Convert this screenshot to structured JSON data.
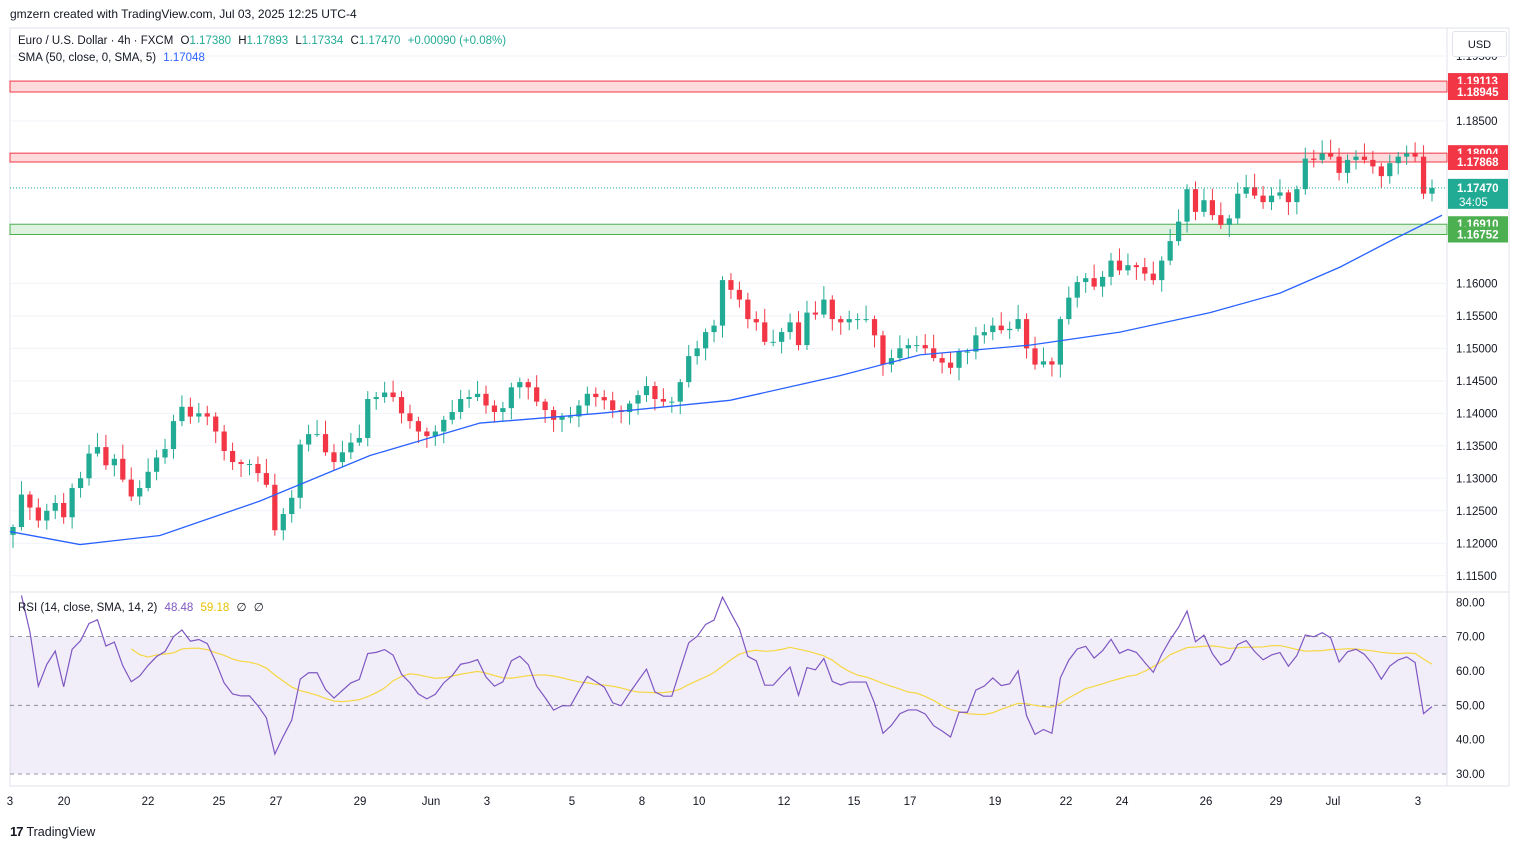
{
  "attribution": "gmzern created with TradingView.com, Jul 03, 2025 12:25 UTC-4",
  "legend": {
    "symbol": "Euro / U.S. Dollar · 4h · FXCM",
    "o_label": "O",
    "o_value": "1.17380",
    "h_label": "H",
    "h_value": "1.17893",
    "l_label": "L",
    "l_value": "1.17334",
    "c_label": "C",
    "c_value": "1.17470",
    "change": "+0.00090 (+0.08%)",
    "sma_label": "SMA (50, close, 0, SMA, 5)",
    "sma_value": "1.17048",
    "rsi_label": "RSI (14, close, SMA, 14, 2)",
    "rsi_value": "48.48",
    "rsi_sma_value": "59.18",
    "rsi_extra1": "∅",
    "rsi_extra2": "∅"
  },
  "currency_button": "USD",
  "footer_brand": "TradingView",
  "colors": {
    "up": "#22ab94",
    "down": "#f23645",
    "sma": "#2962ff",
    "rsi": "#7e57c2",
    "rsi_sma": "#f5d742",
    "resistance_zone": "#f23645",
    "support_zone": "#4caf50"
  },
  "chart_data": {
    "type": "candlestick",
    "main_panel": {
      "y_ticks": [
        "1.19500",
        "1.18500",
        "1.16000",
        "1.15500",
        "1.15000",
        "1.14500",
        "1.14000",
        "1.13500",
        "1.13000",
        "1.12500",
        "1.12000",
        "1.11500"
      ],
      "y_tick_values": [
        1.195,
        1.185,
        1.16,
        1.155,
        1.15,
        1.145,
        1.14,
        1.135,
        1.13,
        1.125,
        1.12,
        1.115
      ],
      "ylim": [
        1.1125,
        1.1993
      ],
      "zones": [
        {
          "type": "resistance",
          "top": 1.19113,
          "bottom": 1.18945,
          "top_label": "1.19113",
          "bottom_label": "1.18945"
        },
        {
          "type": "resistance",
          "top": 1.18004,
          "bottom": 1.17868,
          "top_label": "1.18004",
          "bottom_label": "1.17868"
        },
        {
          "type": "support",
          "top": 1.1691,
          "bottom": 1.16752,
          "top_label": "1.16910",
          "bottom_label": "1.16752"
        }
      ],
      "last_price": {
        "value": 1.1747,
        "label": "1.17470",
        "countdown": "34:05"
      },
      "sma_path": [
        [
          0,
          1.1218
        ],
        [
          70,
          1.1198
        ],
        [
          150,
          1.1212
        ],
        [
          250,
          1.1265
        ],
        [
          360,
          1.1335
        ],
        [
          470,
          1.1385
        ],
        [
          590,
          1.14
        ],
        [
          720,
          1.142
        ],
        [
          830,
          1.1458
        ],
        [
          910,
          1.149
        ],
        [
          1020,
          1.1505
        ],
        [
          1110,
          1.1525
        ],
        [
          1200,
          1.1555
        ],
        [
          1270,
          1.1585
        ],
        [
          1330,
          1.1625
        ],
        [
          1380,
          1.1665
        ],
        [
          1432,
          1.17048
        ]
      ]
    },
    "candles_close": [
      1.1225,
      1.1275,
      1.1255,
      1.1235,
      1.125,
      1.1262,
      1.124,
      1.1285,
      1.13,
      1.1338,
      1.1348,
      1.132,
      1.133,
      1.1298,
      1.1272,
      1.1285,
      1.131,
      1.1332,
      1.1345,
      1.1388,
      1.141,
      1.1395,
      1.14,
      1.1395,
      1.1372,
      1.1342,
      1.1325,
      1.1322,
      1.1322,
      1.1308,
      1.129,
      1.122,
      1.1245,
      1.127,
      1.1352,
      1.1368,
      1.1368,
      1.134,
      1.1325,
      1.134,
      1.1355,
      1.1362,
      1.1422,
      1.1425,
      1.1432,
      1.1425,
      1.14,
      1.1388,
      1.1372,
      1.1365,
      1.1372,
      1.139,
      1.1402,
      1.1422,
      1.1425,
      1.143,
      1.1412,
      1.1402,
      1.1408,
      1.144,
      1.1448,
      1.144,
      1.1418,
      1.1405,
      1.139,
      1.1395,
      1.1395,
      1.1412,
      1.143,
      1.1425,
      1.142,
      1.1405,
      1.1402,
      1.1415,
      1.1428,
      1.1442,
      1.1422,
      1.1418,
      1.1418,
      1.1448,
      1.1488,
      1.15,
      1.1525,
      1.1535,
      1.1605,
      1.159,
      1.1575,
      1.1545,
      1.154,
      1.151,
      1.151,
      1.1525,
      1.154,
      1.1505,
      1.1555,
      1.1552,
      1.1575,
      1.1545,
      1.154,
      1.1545,
      1.1545,
      1.1545,
      1.152,
      1.1475,
      1.1485,
      1.15,
      1.1505,
      1.1505,
      1.15,
      1.1485,
      1.1478,
      1.147,
      1.1495,
      1.1495,
      1.152,
      1.1525,
      1.1535,
      1.1528,
      1.153,
      1.1545,
      1.15,
      1.1475,
      1.148,
      1.1475,
      1.1545,
      1.1578,
      1.1602,
      1.1608,
      1.1595,
      1.161,
      1.1635,
      1.162,
      1.1628,
      1.1625,
      1.1615,
      1.1605,
      1.1635,
      1.1665,
      1.1695,
      1.1745,
      1.171,
      1.1728,
      1.1705,
      1.169,
      1.17,
      1.1738,
      1.1748,
      1.1735,
      1.1725,
      1.1735,
      1.174,
      1.1725,
      1.1745,
      1.1792,
      1.179,
      1.18,
      1.1795,
      1.177,
      1.179,
      1.1795,
      1.179,
      1.178,
      1.1765,
      1.1785,
      1.1795,
      1.18,
      1.1795,
      1.1738,
      1.1747
    ],
    "rsi_panel": {
      "y_ticks": [
        "80.00",
        "70.00",
        "60.00",
        "50.00",
        "40.00",
        "30.00"
      ],
      "y_tick_values": [
        80,
        70,
        60,
        50,
        40,
        30
      ],
      "ylim": [
        26.5,
        83
      ],
      "band": [
        30,
        70
      ],
      "mid": 50
    },
    "x_ticks": [
      "3",
      "20",
      "22",
      "25",
      "27",
      "29",
      "Jun",
      "3",
      "5",
      "8",
      "10",
      "12",
      "15",
      "17",
      "19",
      "22",
      "24",
      "26",
      "29",
      "Jul",
      "3"
    ]
  }
}
